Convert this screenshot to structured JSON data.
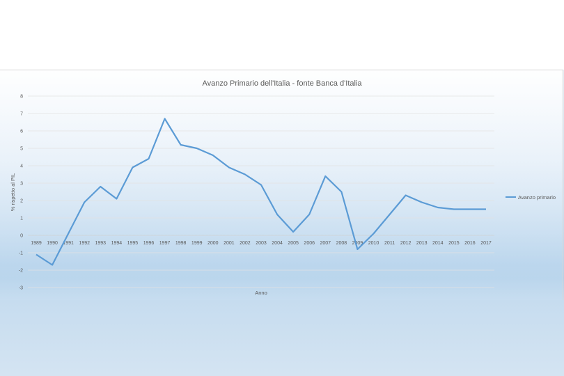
{
  "chart_data": {
    "type": "line",
    "title": "Avanzo Primario dell'Italia - fonte Banca d'Italia",
    "xlabel": "Anno",
    "ylabel": "% rispetto al PIL",
    "ylim": [
      -3,
      8
    ],
    "yticks": [
      "-3",
      "-2",
      "-1",
      "0",
      "1",
      "2",
      "3",
      "4",
      "5",
      "6",
      "7",
      "8"
    ],
    "grid": true,
    "legend_position": "right",
    "categories": [
      "1989",
      "1990",
      "1991",
      "1992",
      "1993",
      "1994",
      "1995",
      "1996",
      "1997",
      "1998",
      "1999",
      "2000",
      "2001",
      "2002",
      "2003",
      "2004",
      "2005",
      "2006",
      "2007",
      "2008",
      "2009",
      "2010",
      "2011",
      "2012",
      "2013",
      "2014",
      "2015",
      "2016",
      "2017"
    ],
    "series": [
      {
        "name": "Avanzo primario",
        "color": "#5b9bd5",
        "values": [
          -1.1,
          -1.7,
          0.1,
          1.9,
          2.8,
          2.1,
          3.9,
          4.4,
          6.7,
          5.2,
          5.0,
          4.6,
          3.9,
          3.5,
          2.9,
          1.2,
          0.2,
          1.2,
          3.4,
          2.5,
          -0.8,
          0.1,
          1.2,
          2.3,
          1.9,
          1.6,
          1.5,
          1.5,
          1.5
        ]
      }
    ]
  }
}
